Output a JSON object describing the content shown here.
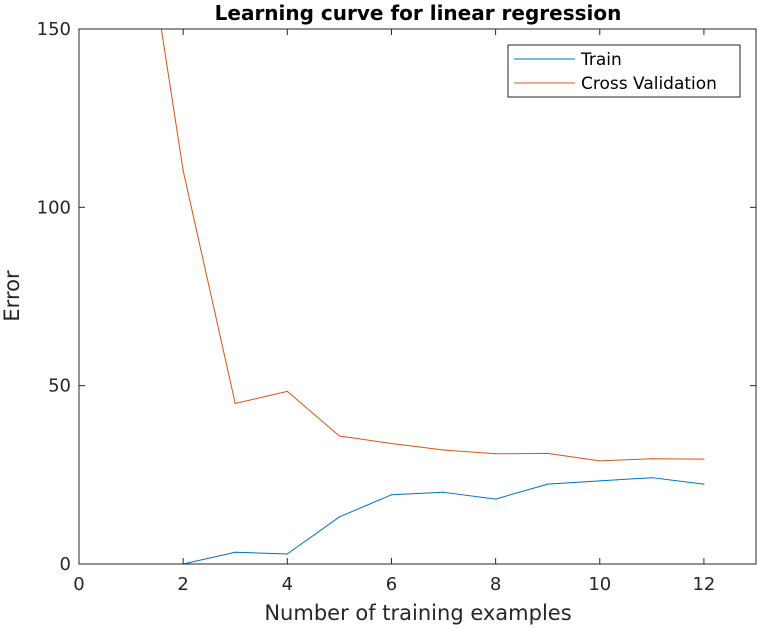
{
  "chart_data": {
    "type": "line",
    "title": "Learning curve for linear regression",
    "xlabel": "Number of training examples",
    "ylabel": "Error",
    "xlim": [
      0,
      13
    ],
    "ylim": [
      0,
      150
    ],
    "xticks": [
      0,
      2,
      4,
      6,
      8,
      10,
      12
    ],
    "yticks": [
      0,
      50,
      100,
      150
    ],
    "grid": false,
    "legend_position": "top-right",
    "series": [
      {
        "name": "Train",
        "color": "#0072bd",
        "x": [
          1,
          2,
          3,
          4,
          5,
          6,
          7,
          8,
          9,
          10,
          11,
          12
        ],
        "y": [
          0.0,
          0.0,
          3.3,
          2.8,
          13.2,
          19.4,
          20.1,
          18.2,
          22.4,
          23.3,
          24.2,
          22.4
        ]
      },
      {
        "name": "Cross Validation",
        "color": "#d95319",
        "x": [
          1,
          2,
          3,
          4,
          5,
          6,
          7,
          8,
          9,
          10,
          11,
          12
        ],
        "y": [
          205.1,
          110.3,
          45.0,
          48.4,
          35.9,
          33.8,
          31.97,
          30.9,
          31.0,
          28.9,
          29.5,
          29.4
        ]
      }
    ]
  }
}
